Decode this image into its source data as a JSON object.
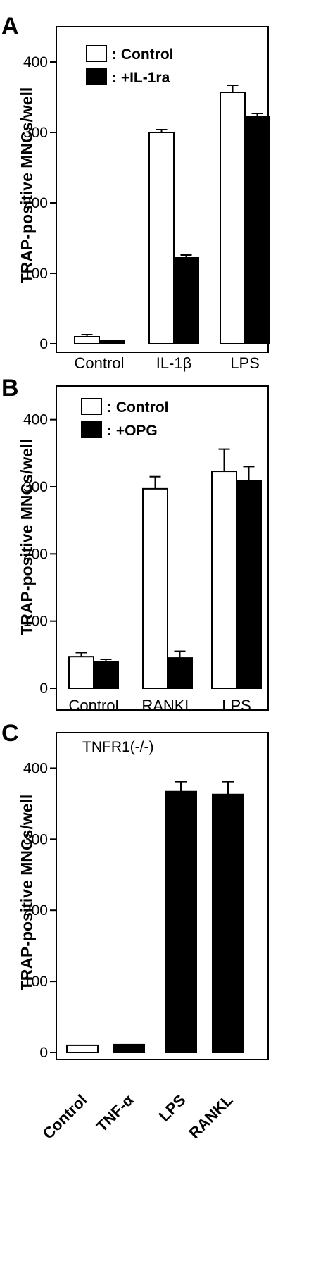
{
  "chart_data": [
    {
      "type": "bar",
      "panel": "A",
      "ylabel": "TRAP-positive MNCs/well",
      "ylim": [
        0,
        450
      ],
      "yticks": [
        0,
        100,
        200,
        300,
        400
      ],
      "categories": [
        "Control",
        "IL-1β",
        "LPS"
      ],
      "legend": [
        ": Control",
        ": +IL-1ra"
      ],
      "series": [
        {
          "name": ": Control",
          "color": "#ffffff",
          "values": [
            10,
            300,
            357
          ],
          "errors": [
            3,
            4,
            10
          ]
        },
        {
          "name": ": +IL-1ra",
          "color": "#000000",
          "values": [
            4,
            122,
            323
          ],
          "errors": [
            1,
            4,
            4
          ]
        }
      ]
    },
    {
      "type": "bar",
      "panel": "B",
      "ylabel": "TRAP-positive MNCs/well",
      "ylim": [
        0,
        450
      ],
      "yticks": [
        0,
        100,
        200,
        300,
        400
      ],
      "categories": [
        "Control",
        "RANKL",
        "LPS"
      ],
      "legend": [
        ": Control",
        ": +OPG"
      ],
      "series": [
        {
          "name": ": Control",
          "color": "#ffffff",
          "values": [
            47,
            297,
            323
          ],
          "errors": [
            6,
            18,
            33
          ]
        },
        {
          "name": ": +OPG",
          "color": "#000000",
          "values": [
            39,
            45,
            309
          ],
          "errors": [
            4,
            10,
            21
          ]
        }
      ]
    },
    {
      "type": "bar",
      "panel": "C",
      "ylabel": "TRAP-positive MNCs/well",
      "ylim": [
        0,
        450
      ],
      "yticks": [
        0,
        100,
        200,
        300,
        400
      ],
      "annotation": "TNFR1(-/-)",
      "categories": [
        "Control",
        "TNF-α",
        "LPS",
        "RANKL"
      ],
      "values": [
        10,
        11,
        367,
        363
      ],
      "errors": [
        0,
        0,
        14,
        18
      ],
      "colors": [
        "#ffffff",
        "#000000",
        "#000000",
        "#000000"
      ]
    }
  ]
}
